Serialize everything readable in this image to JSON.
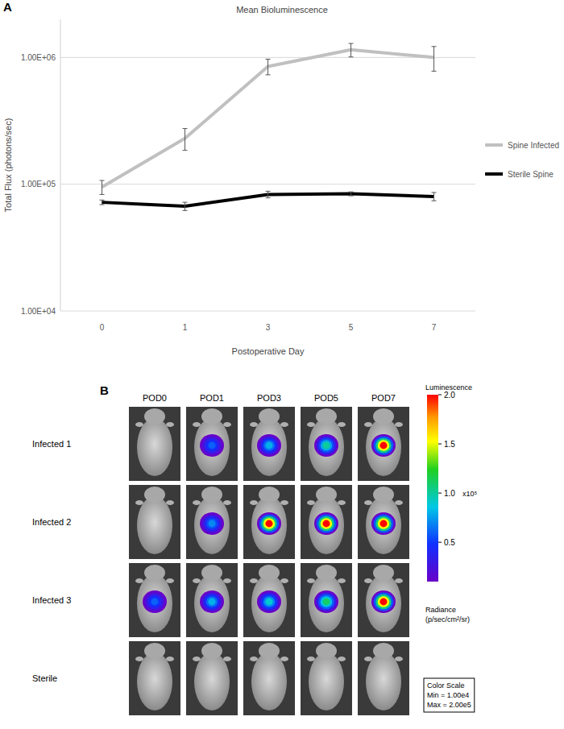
{
  "chart_data": [
    {
      "type": "line",
      "panel": "A",
      "title": "Mean Bioluminescence",
      "x_label": "Postoperative Day",
      "y_label": "Total Flux (photons/sec)",
      "categories": [
        "0",
        "1",
        "3",
        "5",
        "7"
      ],
      "series": [
        {
          "name": "Spine Infected",
          "color": "#c0c0c0",
          "values": [
            95000,
            230000,
            850000,
            1150000,
            1000000
          ],
          "errors": [
            12000,
            45000,
            120000,
            140000,
            220000
          ]
        },
        {
          "name": "Sterile Spine",
          "color": "#000000",
          "values": [
            72000,
            67000,
            83000,
            84000,
            80000
          ],
          "errors": [
            3000,
            5000,
            5000,
            3000,
            6000
          ]
        }
      ],
      "log": "y",
      "ylim": [
        10000,
        2000000
      ],
      "yticks": [
        {
          "value": 10000,
          "label": "1.00E+04"
        },
        {
          "value": 100000,
          "label": "1.00E+05"
        },
        {
          "value": 1000000,
          "label": "1.00E+06"
        }
      ],
      "grid": true,
      "legend": "right"
    },
    {
      "type": "image_grid",
      "panel": "B",
      "columns": [
        "POD0",
        "POD1",
        "POD3",
        "POD5",
        "POD7"
      ],
      "rows": [
        {
          "label": "Infected 1",
          "peak_radiance": [
            null,
            60000,
            80000,
            100000,
            200000
          ]
        },
        {
          "label": "Infected 2",
          "peak_radiance": [
            null,
            70000,
            200000,
            200000,
            200000
          ]
        },
        {
          "label": "Infected 3",
          "peak_radiance": [
            60000,
            80000,
            90000,
            110000,
            200000
          ]
        },
        {
          "label": "Sterile",
          "peak_radiance": [
            null,
            null,
            null,
            null,
            null
          ]
        }
      ],
      "colorbar": {
        "title": "Luminescence",
        "label": "Radiance",
        "unit": "(p/sec/cm²/sr)",
        "range": [
          10000,
          200000
        ],
        "ticks": [
          {
            "value": 50000,
            "label": "0.5"
          },
          {
            "value": 100000,
            "label": "1.0"
          },
          {
            "value": 150000,
            "label": "1.5"
          },
          {
            "value": 200000,
            "label": "2.0"
          }
        ],
        "multiplier": "x10⁵",
        "scale_box": {
          "title": "Color Scale",
          "min": "Min = 1.00e4",
          "max": "Max = 2.00e5"
        }
      }
    }
  ]
}
